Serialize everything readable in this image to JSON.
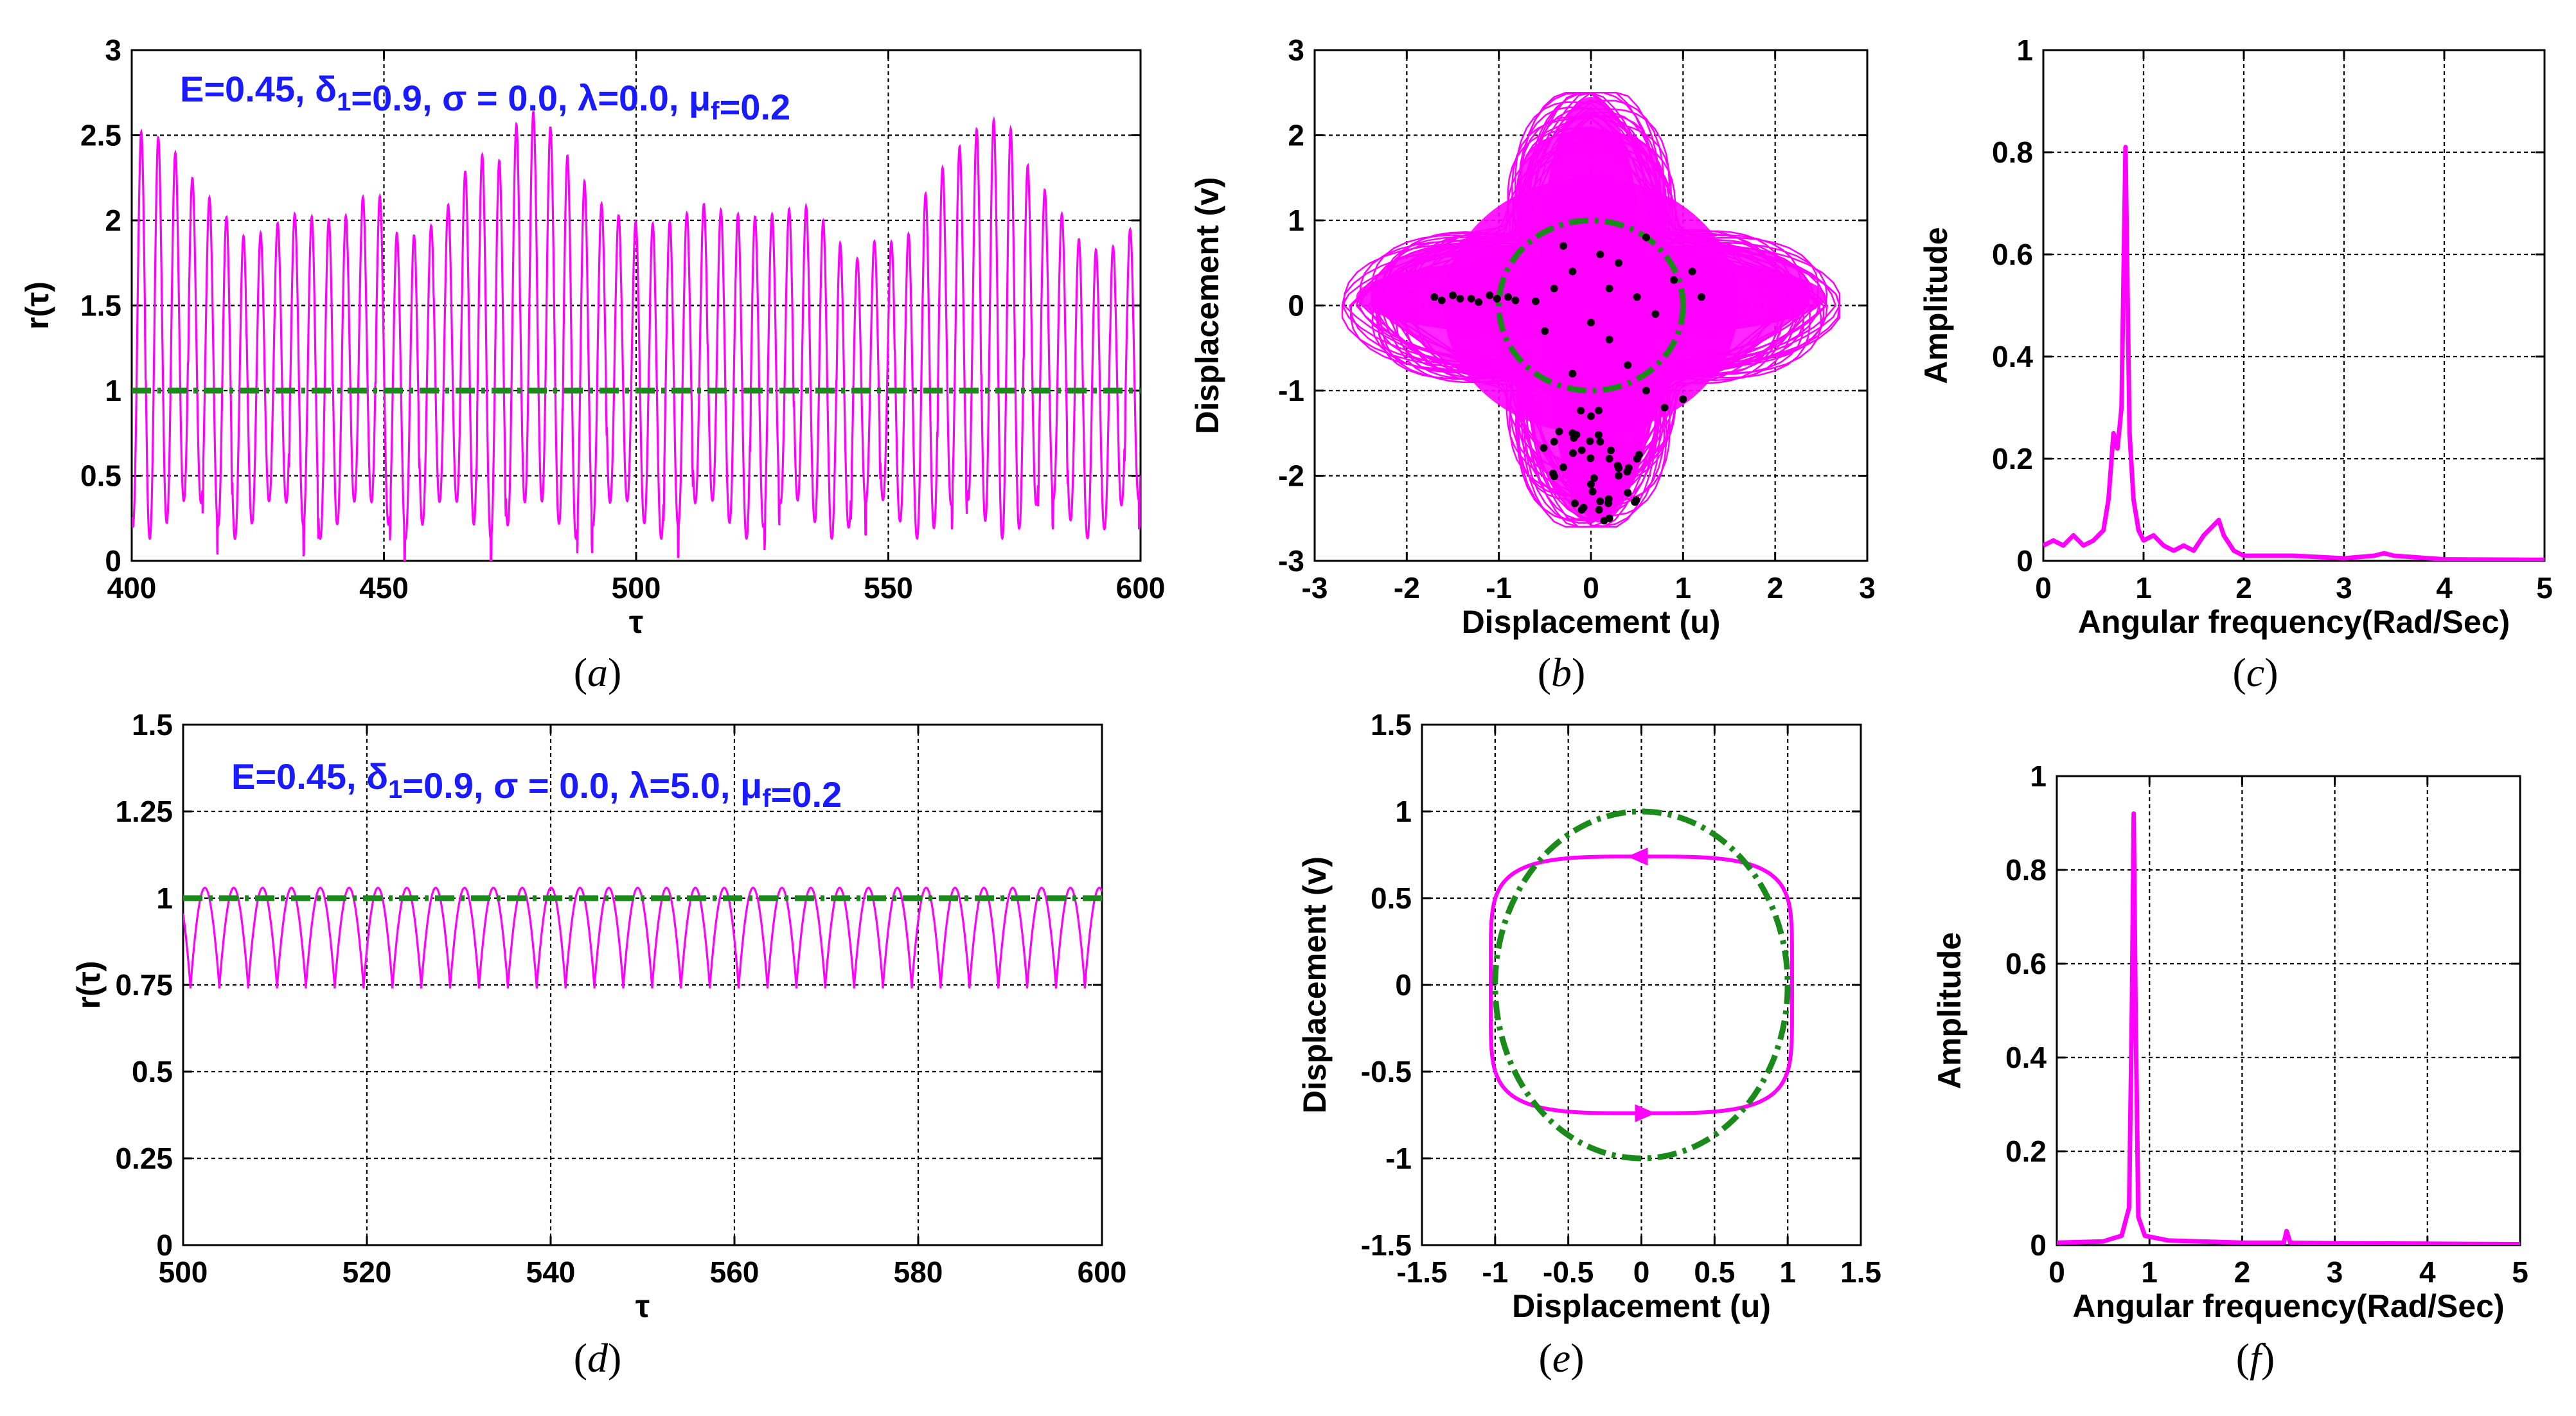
{
  "figure": {
    "panel_labels": [
      "a",
      "b",
      "c",
      "d",
      "e",
      "f"
    ]
  },
  "chart_data": [
    {
      "id": "a",
      "type": "line",
      "title": "",
      "annotation": {
        "parts": [
          {
            "t": "E=0.45, "
          },
          {
            "t": "δ"
          },
          {
            "t": "1",
            "sub": true
          },
          {
            "t": "=0.9, "
          },
          {
            "t": "σ"
          },
          {
            "t": " = 0.0, "
          },
          {
            "t": "λ"
          },
          {
            "t": "=0.0, "
          },
          {
            "t": "μ"
          },
          {
            "t": "f",
            "sub": true
          },
          {
            "t": "=0.2"
          }
        ],
        "color": "#1a1aff"
      },
      "xlabel": "τ",
      "ylabel": "r(τ)",
      "xlim": [
        400,
        600
      ],
      "ylim": [
        0,
        3
      ],
      "xticks": [
        400,
        450,
        500,
        550,
        600
      ],
      "yticks": [
        0,
        0.5,
        1,
        1.5,
        2,
        2.5,
        3
      ],
      "ytick_labels": [
        "0",
        "0.5",
        "1",
        "1.5",
        "2",
        "2.5",
        "3"
      ],
      "xtick_labels": [
        "400",
        "450",
        "500",
        "550",
        "600"
      ],
      "series": [
        {
          "name": "r(τ)",
          "color": "#ff00ff",
          "period": 3.38,
          "phase": 400.2,
          "peaks": [
            [
              402,
              2.52
            ],
            [
              407,
              2.47
            ],
            [
              412,
              2.25
            ],
            [
              417,
              2.08
            ],
            [
              423,
              1.88
            ],
            [
              428,
              1.97
            ],
            [
              433,
              2.05
            ],
            [
              438,
              2.0
            ],
            [
              443,
              2.03
            ],
            [
              448,
              2.22
            ],
            [
              453,
              1.9
            ],
            [
              458,
              1.92
            ],
            [
              463,
              2.1
            ],
            [
              468,
              2.4
            ],
            [
              473,
              2.35
            ],
            [
              478,
              2.68
            ],
            [
              483,
              2.55
            ],
            [
              488,
              2.3
            ],
            [
              493,
              2.1
            ],
            [
              498,
              2.0
            ],
            [
              503,
              1.98
            ],
            [
              508,
              2.0
            ],
            [
              513,
              2.1
            ],
            [
              518,
              2.05
            ],
            [
              523,
              2.02
            ],
            [
              528,
              2.04
            ],
            [
              533,
              2.1
            ],
            [
              538,
              1.98
            ],
            [
              543,
              1.75
            ],
            [
              548,
              1.9
            ],
            [
              553,
              1.85
            ],
            [
              558,
              2.2
            ],
            [
              563,
              2.4
            ],
            [
              568,
              2.55
            ],
            [
              573,
              2.62
            ],
            [
              578,
              2.3
            ],
            [
              583,
              2.1
            ],
            [
              588,
              1.88
            ],
            [
              593,
              1.8
            ],
            [
              598,
              1.95
            ],
            [
              600,
              2.05
            ]
          ],
          "troughs": [
            [
              400,
              0.15
            ],
            [
              430,
              0.2
            ],
            [
              470,
              0.2
            ],
            [
              500,
              0.05
            ],
            [
              530,
              0.22
            ],
            [
              560,
              0.15
            ],
            [
              575,
              0.05
            ],
            [
              600,
              0.15
            ]
          ]
        },
        {
          "name": "r = 1",
          "color": "#1a8a1a",
          "constant": 1.0
        }
      ]
    },
    {
      "id": "b",
      "type": "scatter",
      "xlabel": "Displacement (u)",
      "ylabel": "Displacement (v)",
      "xlim": [
        -3,
        3
      ],
      "ylim": [
        -3,
        3
      ],
      "xticks": [
        -3,
        -2,
        -1,
        0,
        1,
        2,
        3
      ],
      "yticks": [
        -3,
        -2,
        -1,
        0,
        1,
        2,
        3
      ],
      "xtick_labels": [
        "-3",
        "-2",
        "-1",
        "0",
        "1",
        "2",
        "3"
      ],
      "ytick_labels": [
        "-3",
        "-2",
        "-1",
        "0",
        "1",
        "2",
        "3"
      ],
      "series": [
        {
          "name": "phase trajectory",
          "color": "#ff00ff",
          "extent": {
            "u": [
              -2.7,
              2.7
            ],
            "v": [
              -2.6,
              2.5
            ]
          }
        },
        {
          "name": "unit circle",
          "color": "#1a8a1a",
          "radius": 1.0
        },
        {
          "name": "Poincaré points",
          "color": "#000000",
          "points": [
            [
              -1.7,
              0.1
            ],
            [
              -1.5,
              0.12
            ],
            [
              -1.3,
              0.08
            ],
            [
              -1.1,
              0.12
            ],
            [
              -0.9,
              0.1
            ],
            [
              -0.6,
              0.05
            ],
            [
              -0.4,
              0.2
            ],
            [
              -0.2,
              0.4
            ],
            [
              0.1,
              0.6
            ],
            [
              0.3,
              0.5
            ],
            [
              0.5,
              0.1
            ],
            [
              0.7,
              -0.1
            ],
            [
              0.9,
              0.3
            ],
            [
              1.1,
              0.4
            ],
            [
              1.2,
              0.1
            ],
            [
              0.2,
              -0.4
            ],
            [
              0.4,
              -0.7
            ],
            [
              0.6,
              -1.0
            ],
            [
              0.8,
              -1.2
            ],
            [
              1.0,
              -1.1
            ],
            [
              0.0,
              -1.3
            ],
            [
              -0.2,
              -1.5
            ],
            [
              -0.1,
              -1.7
            ],
            [
              0.1,
              -1.6
            ],
            [
              0.2,
              -1.8
            ],
            [
              0.3,
              -2.0
            ],
            [
              -0.3,
              -1.9
            ],
            [
              0.0,
              -2.1
            ],
            [
              0.1,
              -2.3
            ],
            [
              0.2,
              -2.5
            ],
            [
              -0.1,
              -2.4
            ],
            [
              0.4,
              -2.2
            ],
            [
              -0.4,
              -1.6
            ],
            [
              0.5,
              -1.8
            ],
            [
              -0.2,
              -0.8
            ],
            [
              0.0,
              -0.2
            ],
            [
              0.2,
              0.2
            ],
            [
              -0.5,
              -0.3
            ],
            [
              0.6,
              0.8
            ],
            [
              -0.3,
              0.7
            ]
          ]
        }
      ]
    },
    {
      "id": "c",
      "type": "line",
      "xlabel": "Angular frequency(Rad/Sec)",
      "ylabel": "Amplitude",
      "xlim": [
        0,
        5
      ],
      "ylim": [
        0,
        1
      ],
      "xticks": [
        0,
        1,
        2,
        3,
        4,
        5
      ],
      "yticks": [
        0,
        0.2,
        0.4,
        0.6,
        0.8,
        1
      ],
      "xtick_labels": [
        "0",
        "1",
        "2",
        "3",
        "4",
        "5"
      ],
      "ytick_labels": [
        "0",
        "0.2",
        "0.4",
        "0.6",
        "0.8",
        "1"
      ],
      "series": [
        {
          "name": "spectrum",
          "color": "#ff00ff",
          "points": [
            [
              0,
              0.03
            ],
            [
              0.1,
              0.04
            ],
            [
              0.2,
              0.03
            ],
            [
              0.3,
              0.05
            ],
            [
              0.4,
              0.03
            ],
            [
              0.5,
              0.04
            ],
            [
              0.6,
              0.06
            ],
            [
              0.65,
              0.12
            ],
            [
              0.7,
              0.25
            ],
            [
              0.74,
              0.22
            ],
            [
              0.78,
              0.3
            ],
            [
              0.82,
              0.81
            ],
            [
              0.86,
              0.25
            ],
            [
              0.9,
              0.12
            ],
            [
              0.95,
              0.06
            ],
            [
              1.0,
              0.04
            ],
            [
              1.1,
              0.05
            ],
            [
              1.2,
              0.03
            ],
            [
              1.3,
              0.02
            ],
            [
              1.4,
              0.03
            ],
            [
              1.5,
              0.02
            ],
            [
              1.6,
              0.05
            ],
            [
              1.7,
              0.07
            ],
            [
              1.75,
              0.08
            ],
            [
              1.8,
              0.05
            ],
            [
              1.9,
              0.02
            ],
            [
              2.0,
              0.01
            ],
            [
              2.2,
              0.01
            ],
            [
              2.5,
              0.01
            ],
            [
              3.0,
              0.005
            ],
            [
              3.3,
              0.01
            ],
            [
              3.4,
              0.015
            ],
            [
              3.5,
              0.01
            ],
            [
              4.0,
              0.003
            ],
            [
              5.0,
              0.002
            ]
          ]
        }
      ]
    },
    {
      "id": "d",
      "type": "line",
      "annotation": {
        "parts": [
          {
            "t": "E=0.45, "
          },
          {
            "t": "δ"
          },
          {
            "t": "1",
            "sub": true
          },
          {
            "t": "=0.9, "
          },
          {
            "t": "σ"
          },
          {
            "t": " = 0.0, "
          },
          {
            "t": "λ"
          },
          {
            "t": "=5.0, "
          },
          {
            "t": "μ"
          },
          {
            "t": "f",
            "sub": true
          },
          {
            "t": "=0.2"
          }
        ],
        "color": "#1a1aff"
      },
      "xlabel": "τ",
      "ylabel": "r(τ)",
      "xlim": [
        500,
        600
      ],
      "ylim": [
        0,
        1.5
      ],
      "xticks": [
        500,
        520,
        540,
        560,
        580,
        600
      ],
      "yticks": [
        0,
        0.25,
        0.5,
        0.75,
        1,
        1.25,
        1.5
      ],
      "xtick_labels": [
        "500",
        "520",
        "540",
        "560",
        "580",
        "600"
      ],
      "ytick_labels": [
        "0",
        "0.25",
        "0.5",
        "0.75",
        "1",
        "1.25",
        "1.5"
      ],
      "series": [
        {
          "name": "r(τ)",
          "color": "#ff00ff",
          "period": 3.14,
          "phase": 500.8,
          "max": 1.03,
          "min": 0.74
        },
        {
          "name": "r = 1",
          "color": "#1a8a1a",
          "constant": 1.0
        }
      ]
    },
    {
      "id": "e",
      "type": "line",
      "xlabel": "Displacement (u)",
      "ylabel": "Displacement (v)",
      "xlim": [
        -1.5,
        1.5
      ],
      "ylim": [
        -1.5,
        1.5
      ],
      "xticks": [
        -1.5,
        -1,
        -0.5,
        0,
        0.5,
        1,
        1.5
      ],
      "yticks": [
        -1.5,
        -1,
        -0.5,
        0,
        0.5,
        1,
        1.5
      ],
      "xtick_labels": [
        "-1.5",
        "-1",
        "-0.5",
        "0",
        "0.5",
        "1",
        "1.5"
      ],
      "ytick_labels": [
        "-1.5",
        "-1",
        "-0.5",
        "0",
        "0.5",
        "1",
        "1.5"
      ],
      "series": [
        {
          "name": "limit cycle",
          "color": "#ff00ff",
          "u_amp": 1.03,
          "v_amp": 0.74
        },
        {
          "name": "unit circle",
          "color": "#1a8a1a",
          "radius": 1.0
        }
      ]
    },
    {
      "id": "f",
      "type": "line",
      "xlabel": "Angular frequency(Rad/Sec)",
      "ylabel": "Amplitude",
      "xlim": [
        0,
        5
      ],
      "ylim": [
        0,
        1
      ],
      "xticks": [
        0,
        1,
        2,
        3,
        4,
        5
      ],
      "yticks": [
        0,
        0.2,
        0.4,
        0.6,
        0.8,
        1
      ],
      "xtick_labels": [
        "0",
        "1",
        "2",
        "3",
        "4",
        "5"
      ],
      "ytick_labels": [
        "0",
        "0.2",
        "0.4",
        "0.6",
        "0.8",
        "1"
      ],
      "series": [
        {
          "name": "spectrum",
          "color": "#ff00ff",
          "points": [
            [
              0,
              0.005
            ],
            [
              0.5,
              0.008
            ],
            [
              0.7,
              0.02
            ],
            [
              0.78,
              0.08
            ],
            [
              0.81,
              0.5
            ],
            [
              0.83,
              0.92
            ],
            [
              0.85,
              0.5
            ],
            [
              0.88,
              0.06
            ],
            [
              0.95,
              0.02
            ],
            [
              1.2,
              0.01
            ],
            [
              2.0,
              0.005
            ],
            [
              2.45,
              0.005
            ],
            [
              2.48,
              0.03
            ],
            [
              2.52,
              0.005
            ],
            [
              3.0,
              0.004
            ],
            [
              4.0,
              0.003
            ],
            [
              5.0,
              0.002
            ]
          ]
        }
      ]
    }
  ]
}
